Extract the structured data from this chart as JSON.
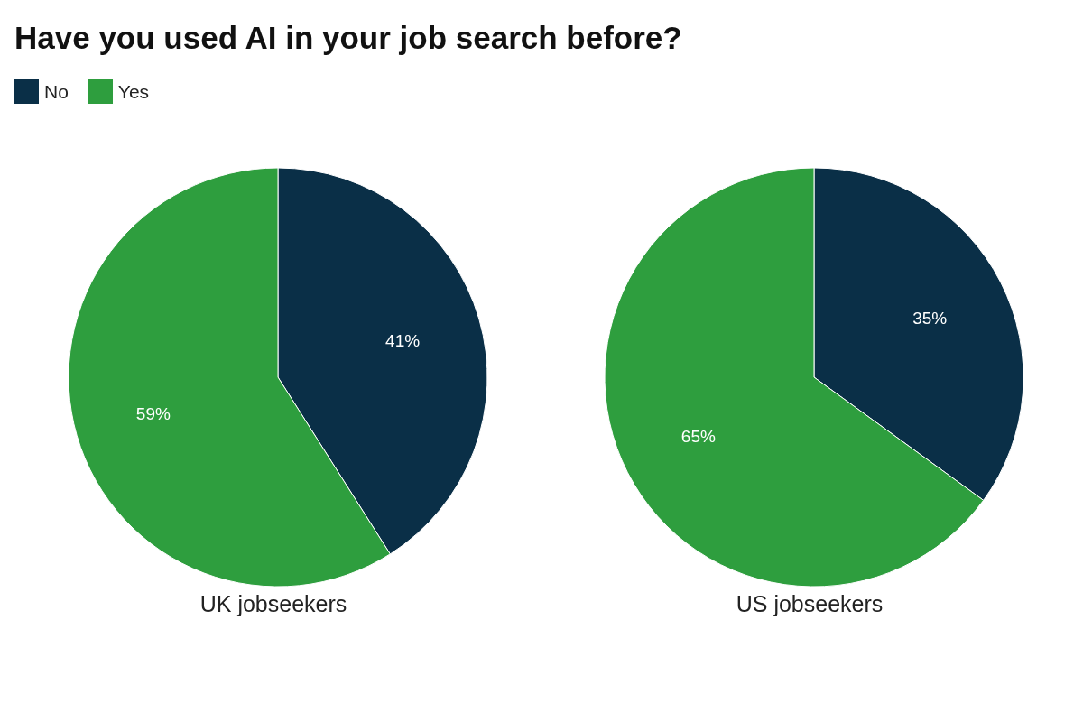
{
  "chart_data": {
    "type": "pie",
    "title": "Have you used AI in your job search before?",
    "categories": [
      "No",
      "Yes"
    ],
    "colors": [
      "#0a2f47",
      "#2e9e3e"
    ],
    "legend": "top left",
    "series": [
      {
        "name": "UK jobseekers",
        "values": [
          41,
          59
        ],
        "value_labels": [
          "41%",
          "59%"
        ]
      },
      {
        "name": "US jobseekers",
        "values": [
          35,
          65
        ],
        "value_labels": [
          "35%",
          "65%"
        ]
      }
    ]
  }
}
